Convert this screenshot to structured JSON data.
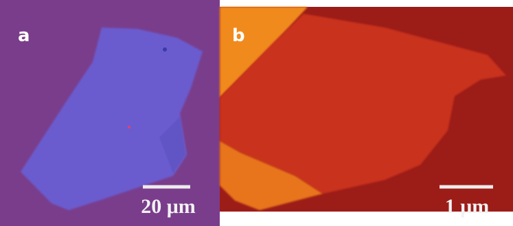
{
  "panels": [
    {
      "label": "a",
      "scale_bar": "20 μm"
    },
    {
      "label": "b",
      "scale_bar": "1 μm"
    }
  ]
}
